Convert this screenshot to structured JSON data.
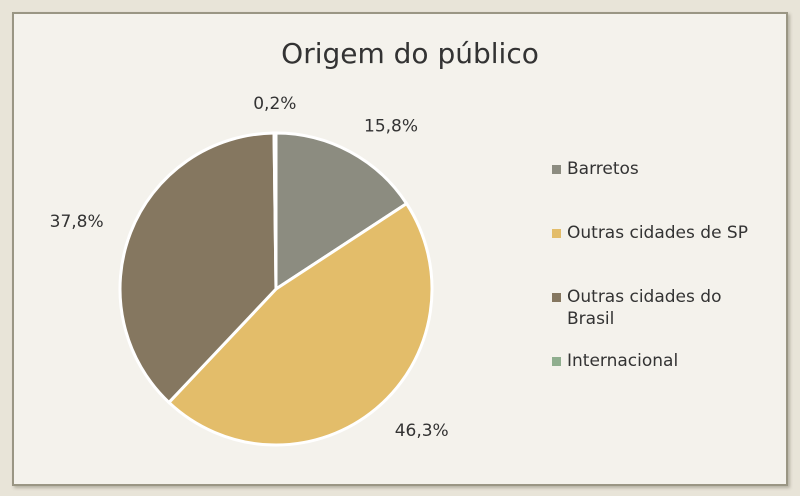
{
  "chart_data": {
    "type": "pie",
    "title": "Origem do público",
    "categories": [
      "Barretos",
      "Outras cidades de SP",
      "Outras cidades do Brasil",
      "Internacional"
    ],
    "values": [
      15.8,
      46.3,
      37.8,
      0.2
    ],
    "value_labels": [
      "15,8%",
      "46,3%",
      "37,8%",
      "0,2%"
    ],
    "colors": [
      "#8c8c80",
      "#e3bd6a",
      "#857760",
      "#8fae8e"
    ],
    "legend": "right"
  }
}
